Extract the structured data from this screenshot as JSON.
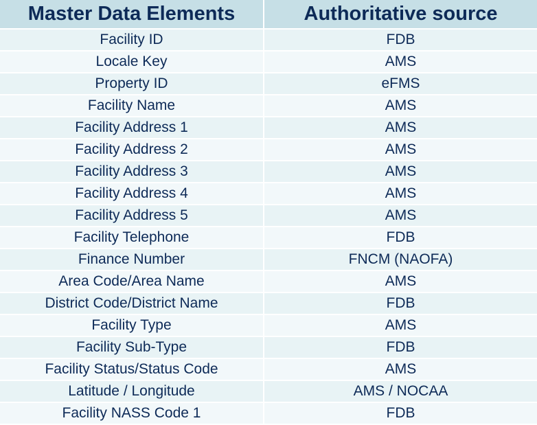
{
  "table": {
    "headers": [
      "Master Data Elements",
      "Authoritative source"
    ],
    "rows": [
      [
        "Facility ID",
        "FDB"
      ],
      [
        "Locale Key",
        "AMS"
      ],
      [
        "Property ID",
        "eFMS"
      ],
      [
        "Facility Name",
        "AMS"
      ],
      [
        "Facility Address 1",
        "AMS"
      ],
      [
        "Facility Address 2",
        "AMS"
      ],
      [
        "Facility Address 3",
        "AMS"
      ],
      [
        "Facility Address 4",
        "AMS"
      ],
      [
        "Facility Address 5",
        "AMS"
      ],
      [
        "Facility Telephone",
        "FDB"
      ],
      [
        "Finance Number",
        "FNCM (NAOFA)"
      ],
      [
        "Area Code/Area Name",
        "AMS"
      ],
      [
        "District Code/District Name",
        "FDB"
      ],
      [
        "Facility Type",
        "AMS"
      ],
      [
        "Facility Sub-Type",
        "FDB"
      ],
      [
        "Facility Status/Status Code",
        "AMS"
      ],
      [
        "Latitude / Longitude",
        "AMS / NOCAA"
      ],
      [
        "Facility NASS Code 1",
        "FDB"
      ]
    ]
  },
  "colors": {
    "header_bg": "#c6dfe6",
    "row_bg_odd": "#e8f3f5",
    "row_bg_even": "#f2f8fa",
    "text": "#0d2a57"
  }
}
